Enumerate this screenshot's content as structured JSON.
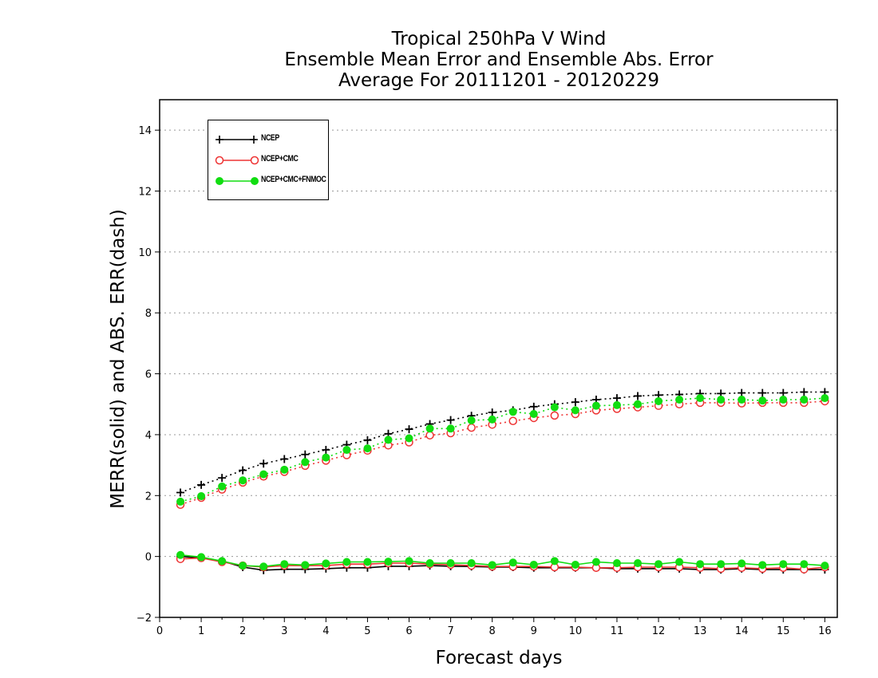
{
  "chart_data": {
    "type": "line",
    "title": [
      "Tropical 250hPa V Wind",
      "Ensemble Mean Error and Ensemble Abs. Error",
      "Average For 20111201 - 20120229"
    ],
    "xlabel": "Forecast days",
    "ylabel": "MERR(solid) and ABS. ERR(dash)",
    "xlim": [
      0,
      16.3
    ],
    "ylim": [
      -2,
      15
    ],
    "xticks": [
      0,
      1,
      2,
      3,
      4,
      5,
      6,
      7,
      8,
      9,
      10,
      11,
      12,
      13,
      14,
      15,
      16
    ],
    "yticks": [
      -2,
      0,
      2,
      4,
      6,
      8,
      10,
      12,
      14
    ],
    "grid": "horizontal dotted",
    "legend_position": "top-left",
    "x": [
      0.5,
      1,
      1.5,
      2,
      2.5,
      3,
      3.5,
      4,
      4.5,
      5,
      5.5,
      6,
      6.5,
      7,
      7.5,
      8,
      8.5,
      9,
      9.5,
      10,
      10.5,
      11,
      11.5,
      12,
      12.5,
      13,
      13.5,
      14,
      14.5,
      15,
      15.5,
      16
    ],
    "series": [
      {
        "name": "NCEP",
        "color": "#000000",
        "marker": "plus",
        "merr": [
          0.0,
          -0.05,
          -0.15,
          -0.35,
          -0.45,
          -0.42,
          -0.42,
          -0.4,
          -0.37,
          -0.37,
          -0.32,
          -0.32,
          -0.3,
          -0.32,
          -0.33,
          -0.35,
          -0.35,
          -0.37,
          -0.37,
          -0.37,
          -0.37,
          -0.4,
          -0.4,
          -0.4,
          -0.4,
          -0.43,
          -0.43,
          -0.4,
          -0.43,
          -0.43,
          -0.43,
          -0.43
        ],
        "abs_err": [
          2.1,
          2.35,
          2.58,
          2.83,
          3.05,
          3.2,
          3.35,
          3.5,
          3.67,
          3.82,
          4.03,
          4.18,
          4.35,
          4.48,
          4.62,
          4.73,
          4.8,
          4.92,
          5.0,
          5.07,
          5.15,
          5.2,
          5.27,
          5.3,
          5.32,
          5.35,
          5.35,
          5.37,
          5.37,
          5.37,
          5.4,
          5.4
        ]
      },
      {
        "name": "NCEP+CMC",
        "color": "#ee3333",
        "marker": "open-circle",
        "merr": [
          -0.08,
          -0.05,
          -0.18,
          -0.3,
          -0.35,
          -0.3,
          -0.3,
          -0.3,
          -0.25,
          -0.25,
          -0.22,
          -0.22,
          -0.25,
          -0.27,
          -0.3,
          -0.33,
          -0.33,
          -0.33,
          -0.35,
          -0.35,
          -0.37,
          -0.37,
          -0.35,
          -0.35,
          -0.35,
          -0.37,
          -0.4,
          -0.37,
          -0.4,
          -0.37,
          -0.42,
          -0.35
        ],
        "abs_err": [
          1.7,
          1.93,
          2.2,
          2.43,
          2.63,
          2.78,
          2.98,
          3.15,
          3.33,
          3.48,
          3.65,
          3.75,
          3.98,
          4.05,
          4.23,
          4.33,
          4.45,
          4.55,
          4.63,
          4.68,
          4.8,
          4.85,
          4.9,
          4.95,
          5.0,
          5.05,
          5.05,
          5.03,
          5.05,
          5.05,
          5.05,
          5.1
        ]
      },
      {
        "name": "NCEP+CMC+FNMOC",
        "color": "#11dd11",
        "marker": "filled-circle",
        "merr": [
          0.05,
          -0.02,
          -0.15,
          -0.3,
          -0.33,
          -0.25,
          -0.28,
          -0.23,
          -0.18,
          -0.18,
          -0.17,
          -0.15,
          -0.22,
          -0.22,
          -0.22,
          -0.28,
          -0.2,
          -0.27,
          -0.15,
          -0.27,
          -0.18,
          -0.22,
          -0.22,
          -0.25,
          -0.18,
          -0.25,
          -0.25,
          -0.23,
          -0.28,
          -0.25,
          -0.25,
          -0.3
        ],
        "abs_err": [
          1.8,
          1.98,
          2.3,
          2.5,
          2.7,
          2.85,
          3.1,
          3.25,
          3.5,
          3.55,
          3.83,
          3.88,
          4.2,
          4.2,
          4.47,
          4.5,
          4.75,
          4.68,
          4.9,
          4.8,
          4.95,
          4.97,
          5.0,
          5.1,
          5.15,
          5.2,
          5.15,
          5.15,
          5.12,
          5.15,
          5.15,
          5.2
        ]
      }
    ]
  }
}
